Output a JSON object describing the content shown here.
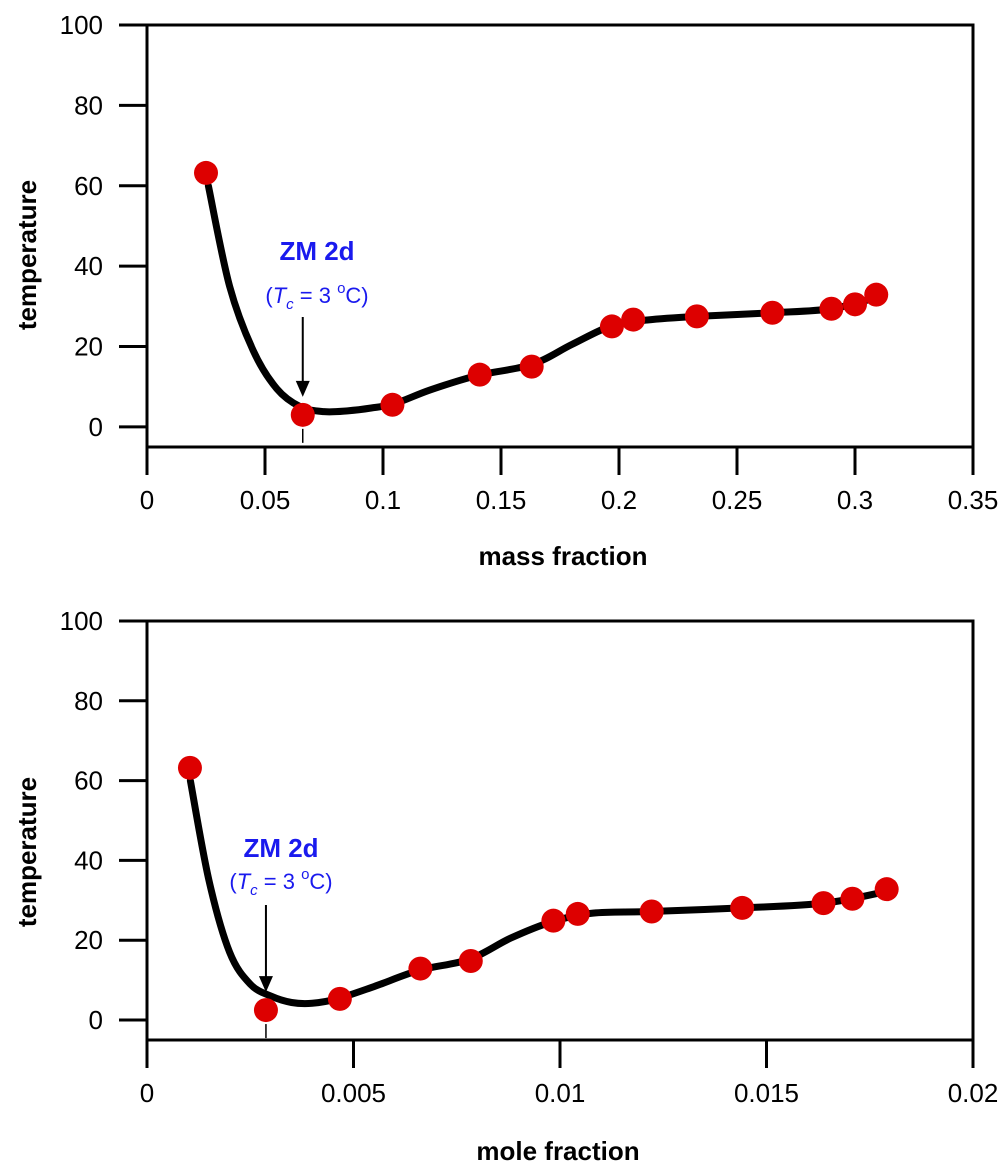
{
  "chart_data": [
    {
      "type": "line",
      "xlabel": "mass fraction",
      "ylabel": "temperature",
      "xlim": [
        0,
        0.35
      ],
      "ylim": [
        -5,
        100
      ],
      "x_ticks": [
        0,
        0.05,
        0.1,
        0.15,
        0.2,
        0.25,
        0.3,
        0.35
      ],
      "x_tick_labels": [
        "0",
        "0.05",
        "0.1",
        "0.15",
        "0.2",
        "0.25",
        "0.3",
        "0.35"
      ],
      "y_ticks": [
        0,
        20,
        40,
        60,
        80,
        100
      ],
      "y_tick_labels": [
        "0",
        "20",
        "40",
        "60",
        "80",
        "100"
      ],
      "grid": false,
      "series": [
        {
          "x": [
            0.025,
            0.066,
            0.104,
            0.141,
            0.163,
            0.197,
            0.206,
            0.233,
            0.265,
            0.29,
            0.3,
            0.309
          ],
          "y": [
            63.2,
            3.0,
            5.5,
            13.0,
            15.0,
            25.0,
            26.7,
            27.5,
            28.4,
            29.4,
            30.5,
            32.9
          ]
        }
      ],
      "curve": {
        "x": [
          0.026,
          0.035,
          0.045,
          0.055,
          0.065,
          0.075,
          0.085,
          0.095,
          0.105,
          0.12,
          0.14,
          0.163,
          0.18,
          0.197,
          0.212,
          0.233,
          0.265,
          0.29,
          0.309
        ],
        "y": [
          60,
          35,
          19,
          9.5,
          5,
          3.8,
          4,
          4.7,
          5.8,
          9.2,
          12.8,
          15.5,
          20.5,
          25.2,
          26.6,
          27.5,
          28.4,
          29.4,
          32.2
        ]
      },
      "annotation": {
        "title": "ZM 2d",
        "sub_open": "(",
        "sub_var": "T",
        "sub_subscript": "c",
        "sub_mid": " = 3 ",
        "sub_sup": "o",
        "sub_end": "C)",
        "x": 0.066,
        "y": 3.0
      },
      "colors": {
        "curve": "#000000",
        "points": "#dd0000",
        "annotation": "#1a1aee"
      }
    },
    {
      "type": "line",
      "xlabel": "mole fraction",
      "ylabel": "temperature",
      "xlim": [
        0,
        0.02
      ],
      "ylim": [
        -5,
        100
      ],
      "x_ticks": [
        0,
        0.005,
        0.01,
        0.015,
        0.02
      ],
      "x_tick_labels": [
        "0",
        "0.005",
        "0.01",
        "0.015",
        "0.02"
      ],
      "y_ticks": [
        0,
        20,
        40,
        60,
        80,
        100
      ],
      "y_tick_labels": [
        "0",
        "20",
        "40",
        "60",
        "80",
        "100"
      ],
      "grid": false,
      "series": [
        {
          "x": [
            0.00104,
            0.00288,
            0.00467,
            0.00662,
            0.00784,
            0.00984,
            0.01043,
            0.01222,
            0.01441,
            0.01638,
            0.01708,
            0.01791
          ],
          "y": [
            63.2,
            2.5,
            5.3,
            12.9,
            14.8,
            24.9,
            26.6,
            27.2,
            28.1,
            29.3,
            30.4,
            32.8
          ]
        }
      ],
      "curve": {
        "x": [
          0.00105,
          0.0015,
          0.002,
          0.0025,
          0.003,
          0.0035,
          0.004,
          0.0046,
          0.0055,
          0.0066,
          0.0078,
          0.0088,
          0.0098,
          0.0108,
          0.0122,
          0.0144,
          0.0164,
          0.0179
        ],
        "y": [
          60,
          35,
          17,
          9,
          6,
          4.4,
          4.2,
          5.3,
          8.4,
          12.5,
          15.2,
          20.5,
          24.6,
          26.8,
          27.2,
          28.1,
          29.3,
          32.2
        ]
      },
      "annotation": {
        "title": "ZM 2d",
        "sub_open": "(",
        "sub_var": "T",
        "sub_subscript": "c",
        "sub_mid": " = 3 ",
        "sub_sup": "o",
        "sub_end": "C)",
        "x": 0.00288,
        "y": 2.5
      },
      "colors": {
        "curve": "#000000",
        "points": "#dd0000",
        "annotation": "#1a1aee"
      }
    }
  ]
}
